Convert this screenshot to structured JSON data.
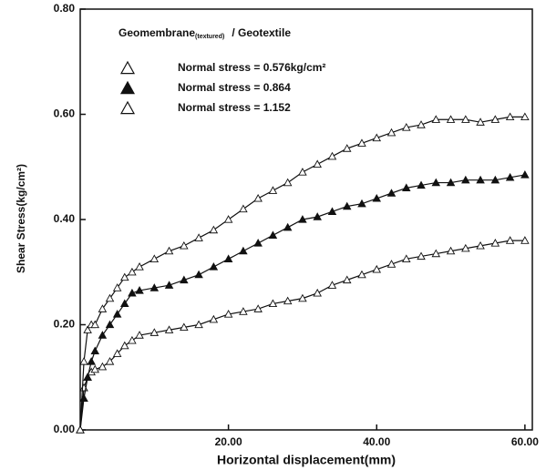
{
  "chart_data": {
    "type": "line",
    "legend_title": "Geomembrane",
    "legend_title_subscript": "(textured)",
    "legend_title_suffix": "/ Geotextile",
    "xlabel": "Horizontal displacement(mm)",
    "ylabel": "Shear Stress(kg/cm²)",
    "x": [
      0,
      0.5,
      1,
      1.5,
      2,
      3,
      4,
      5,
      6,
      7,
      8,
      10,
      12,
      14,
      16,
      18,
      20,
      22,
      24,
      26,
      28,
      30,
      32,
      34,
      36,
      38,
      40,
      42,
      44,
      46,
      48,
      50,
      52,
      54,
      56,
      58,
      60
    ],
    "series": [
      {
        "name": "Normal stress = 0.576kg/cm²",
        "color": "#111111",
        "filled": false,
        "values": [
          0,
          0.08,
          0.1,
          0.11,
          0.115,
          0.12,
          0.13,
          0.145,
          0.16,
          0.17,
          0.18,
          0.185,
          0.19,
          0.195,
          0.2,
          0.21,
          0.22,
          0.225,
          0.23,
          0.24,
          0.245,
          0.25,
          0.26,
          0.275,
          0.285,
          0.295,
          0.305,
          0.315,
          0.325,
          0.33,
          0.335,
          0.34,
          0.345,
          0.35,
          0.355,
          0.36,
          0.36
        ]
      },
      {
        "name": "Normal stress = 0.864",
        "color": "#111111",
        "filled": true,
        "values": [
          0,
          0.06,
          0.1,
          0.13,
          0.15,
          0.18,
          0.2,
          0.22,
          0.24,
          0.26,
          0.265,
          0.27,
          0.275,
          0.285,
          0.295,
          0.31,
          0.325,
          0.34,
          0.355,
          0.37,
          0.385,
          0.4,
          0.405,
          0.415,
          0.425,
          0.43,
          0.44,
          0.45,
          0.46,
          0.465,
          0.47,
          0.47,
          0.475,
          0.475,
          0.475,
          0.48,
          0.485
        ]
      },
      {
        "name": "Normal stress = 1.152",
        "color": "#111111",
        "filled": false,
        "values": [
          0,
          0.13,
          0.19,
          0.2,
          0.2,
          0.23,
          0.25,
          0.27,
          0.29,
          0.3,
          0.31,
          0.325,
          0.34,
          0.35,
          0.365,
          0.38,
          0.4,
          0.42,
          0.44,
          0.455,
          0.47,
          0.49,
          0.505,
          0.52,
          0.535,
          0.545,
          0.555,
          0.565,
          0.575,
          0.58,
          0.59,
          0.59,
          0.59,
          0.585,
          0.59,
          0.595,
          0.595
        ]
      }
    ],
    "xlim": [
      0,
      61
    ],
    "ylim": [
      0,
      0.8
    ],
    "xticks": [
      {
        "value": 20,
        "label": "20.00"
      },
      {
        "value": 40,
        "label": "40.00"
      },
      {
        "value": 60,
        "label": "60.00"
      }
    ],
    "yticks": [
      {
        "value": 0,
        "label": "0.00"
      },
      {
        "value": 0.2,
        "label": "0.20"
      },
      {
        "value": 0.4,
        "label": "0.40"
      },
      {
        "value": 0.6,
        "label": "0.60"
      },
      {
        "value": 0.8,
        "label": "0.80"
      }
    ],
    "grid": false
  }
}
